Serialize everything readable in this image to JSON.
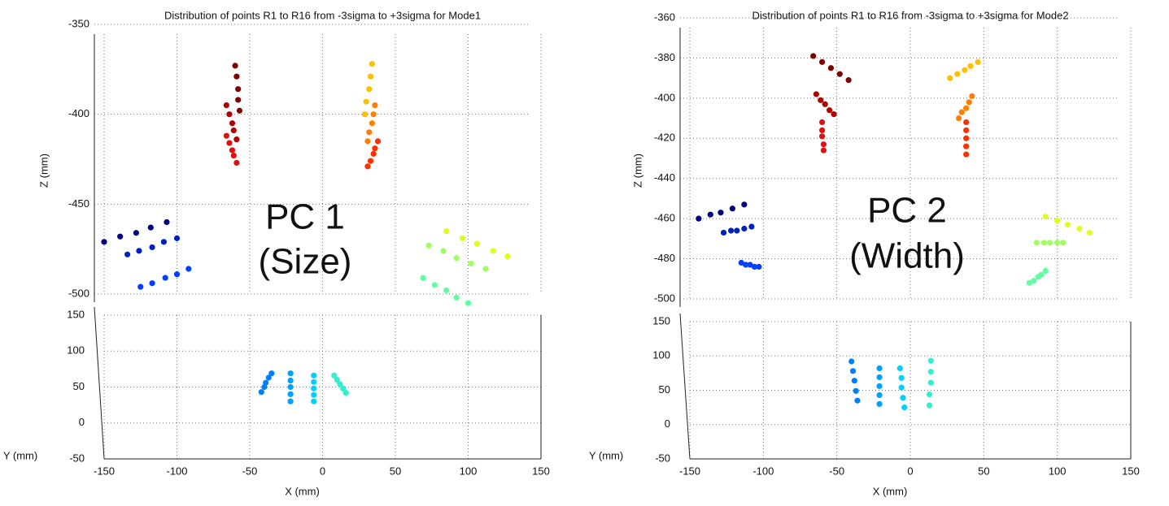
{
  "chart_data": [
    {
      "type": "scatter",
      "title": "Distribution of points R1 to R16 from -3sigma to +3sigma for Mode1",
      "annotation": [
        "PC 1",
        "(Size)"
      ],
      "xlabel": "X (mm)",
      "ylabel": "Y (mm)",
      "zlabel": "Z (mm)",
      "xlim": [
        -150,
        150
      ],
      "xticks": [
        -150,
        -100,
        -50,
        0,
        50,
        100,
        150
      ],
      "zlim": [
        -500,
        -350
      ],
      "zticks": [
        -350,
        -400,
        -450,
        -500
      ],
      "ylim": [
        -50,
        150
      ],
      "yticks": [
        -50,
        0,
        50,
        100,
        150
      ],
      "grid": true,
      "series": [
        {
          "color": "#7f0000",
          "axis": "z",
          "x": [
            -60,
            -59,
            -58,
            -58,
            -57
          ],
          "values": [
            -373,
            -379,
            -386,
            -392,
            -398
          ]
        },
        {
          "color": "#b00000",
          "axis": "z",
          "x": [
            -66,
            -64,
            -62,
            -61,
            -59
          ],
          "values": [
            -395,
            -400,
            -405,
            -409,
            -414
          ]
        },
        {
          "color": "#e01010",
          "axis": "z",
          "x": [
            -66,
            -64,
            -62,
            -61,
            -59
          ],
          "values": [
            -412,
            -416,
            -420,
            -423,
            -427
          ]
        },
        {
          "color": "#ffbf00",
          "axis": "z",
          "x": [
            34,
            33,
            32,
            30,
            29
          ],
          "values": [
            -372,
            -379,
            -386,
            -393,
            -400
          ]
        },
        {
          "color": "#ff8000",
          "axis": "z",
          "x": [
            36,
            35,
            34,
            32,
            31
          ],
          "values": [
            -395,
            -400,
            -405,
            -410,
            -415
          ]
        },
        {
          "color": "#ff3000",
          "axis": "z",
          "x": [
            38,
            36,
            35,
            33,
            31
          ],
          "values": [
            -415,
            -419,
            -422,
            -426,
            -429
          ]
        },
        {
          "color": "#00007f",
          "axis": "z",
          "x": [
            -150,
            -139,
            -128,
            -118,
            -107
          ],
          "values": [
            -471,
            -468,
            -466,
            -463,
            -460
          ]
        },
        {
          "color": "#0020c0",
          "axis": "z",
          "x": [
            -134,
            -126,
            -117,
            -109,
            -100
          ],
          "values": [
            -478,
            -476,
            -474,
            -471,
            -469
          ]
        },
        {
          "color": "#0040ff",
          "axis": "z",
          "x": [
            -125,
            -117,
            -108,
            -100,
            -92
          ],
          "values": [
            -496,
            -494,
            -491,
            -489,
            -486
          ]
        },
        {
          "color": "#e0ff20",
          "axis": "z",
          "x": [
            85,
            96,
            106,
            117,
            127
          ],
          "values": [
            -465,
            -469,
            -472,
            -476,
            -479
          ]
        },
        {
          "color": "#a0ff60",
          "axis": "z",
          "x": [
            73,
            83,
            92,
            102,
            112
          ],
          "values": [
            -473,
            -476,
            -480,
            -483,
            -486
          ]
        },
        {
          "color": "#60ffa0",
          "axis": "z",
          "x": [
            69,
            77,
            85,
            92,
            100
          ],
          "values": [
            -491,
            -495,
            -498,
            -502,
            -505
          ]
        },
        {
          "color": "#0080ff",
          "axis": "y",
          "x": [
            -35,
            -37,
            -39,
            -40,
            -42
          ],
          "values": [
            69,
            63,
            56,
            50,
            43
          ]
        },
        {
          "color": "#00a0ff",
          "axis": "y",
          "x": [
            -22,
            -22,
            -22,
            -22,
            -22
          ],
          "values": [
            69,
            59,
            50,
            40,
            30
          ]
        },
        {
          "color": "#00d0ff",
          "axis": "y",
          "x": [
            -6,
            -6,
            -6,
            -6,
            -6
          ],
          "values": [
            66,
            57,
            48,
            39,
            30
          ]
        },
        {
          "color": "#30f0d0",
          "axis": "y",
          "x": [
            8,
            10,
            12,
            14,
            16
          ],
          "values": [
            66,
            60,
            54,
            48,
            42
          ]
        }
      ]
    },
    {
      "type": "scatter",
      "title": "Distribution of points R1 to R16 from -3sigma to +3sigma for Mode2",
      "annotation": [
        "PC 2",
        "(Width)"
      ],
      "xlabel": "X (mm)",
      "ylabel": "Y (mm)",
      "zlabel": "Z (mm)",
      "xlim": [
        -150,
        150
      ],
      "xticks": [
        -150,
        -100,
        -50,
        0,
        50,
        100,
        150
      ],
      "zlim": [
        -500,
        -360
      ],
      "zticks": [
        -360,
        -380,
        -400,
        -420,
        -440,
        -460,
        -480,
        -500
      ],
      "ylim": [
        -50,
        150
      ],
      "yticks": [
        -50,
        0,
        50,
        100,
        150
      ],
      "grid": true,
      "series": [
        {
          "color": "#7f0000",
          "axis": "z",
          "x": [
            -66,
            -60,
            -54,
            -48,
            -42
          ],
          "values": [
            -379,
            -382,
            -385,
            -388,
            -391
          ]
        },
        {
          "color": "#b00000",
          "axis": "z",
          "x": [
            -64,
            -61,
            -58,
            -55,
            -52
          ],
          "values": [
            -398,
            -401,
            -403,
            -406,
            -408
          ]
        },
        {
          "color": "#e01010",
          "axis": "z",
          "x": [
            -60,
            -60,
            -60,
            -59,
            -59
          ],
          "values": [
            -412,
            -416,
            -419,
            -423,
            -426
          ]
        },
        {
          "color": "#ffbf00",
          "axis": "z",
          "x": [
            27,
            32,
            37,
            41,
            46
          ],
          "values": [
            -390,
            -388,
            -386,
            -384,
            -382
          ]
        },
        {
          "color": "#ff8000",
          "axis": "z",
          "x": [
            33,
            35,
            38,
            40,
            42
          ],
          "values": [
            -410,
            -407,
            -405,
            -402,
            -399
          ]
        },
        {
          "color": "#ff3000",
          "axis": "z",
          "x": [
            38,
            38,
            38,
            38,
            38
          ],
          "values": [
            -412,
            -416,
            -420,
            -424,
            -428
          ]
        },
        {
          "color": "#00007f",
          "axis": "z",
          "x": [
            -144,
            -136,
            -129,
            -121,
            -113
          ],
          "values": [
            -460,
            -458,
            -457,
            -455,
            -453
          ]
        },
        {
          "color": "#0020c0",
          "axis": "z",
          "x": [
            -127,
            -122,
            -118,
            -113,
            -108
          ],
          "values": [
            -467,
            -466,
            -466,
            -465,
            -464
          ]
        },
        {
          "color": "#0040ff",
          "axis": "z",
          "x": [
            -115,
            -112,
            -109,
            -106,
            -103
          ],
          "values": [
            -482,
            -483,
            -483,
            -484,
            -484
          ]
        },
        {
          "color": "#e0ff20",
          "axis": "z",
          "x": [
            92,
            100,
            107,
            115,
            122
          ],
          "values": [
            -459,
            -461,
            -463,
            -465,
            -467
          ]
        },
        {
          "color": "#a0ff60",
          "axis": "z",
          "x": [
            86,
            91,
            95,
            100,
            104
          ],
          "values": [
            -472,
            -472,
            -472,
            -472,
            -472
          ]
        },
        {
          "color": "#60ffa0",
          "axis": "z",
          "x": [
            81,
            84,
            87,
            89,
            92
          ],
          "values": [
            -492,
            -491,
            -489,
            -488,
            -486
          ]
        },
        {
          "color": "#0080ff",
          "axis": "y",
          "x": [
            -40,
            -39,
            -38,
            -37,
            -36
          ],
          "values": [
            92,
            78,
            64,
            49,
            35
          ]
        },
        {
          "color": "#00a0ff",
          "axis": "y",
          "x": [
            -21,
            -21,
            -21,
            -21,
            -21
          ],
          "values": [
            82,
            69,
            56,
            43,
            30
          ]
        },
        {
          "color": "#00d0ff",
          "axis": "y",
          "x": [
            -7,
            -6,
            -6,
            -5,
            -4
          ],
          "values": [
            82,
            68,
            54,
            39,
            25
          ]
        },
        {
          "color": "#30f0d0",
          "axis": "y",
          "x": [
            14,
            14,
            14,
            13,
            13
          ],
          "values": [
            93,
            77,
            61,
            44,
            28
          ]
        }
      ]
    }
  ]
}
